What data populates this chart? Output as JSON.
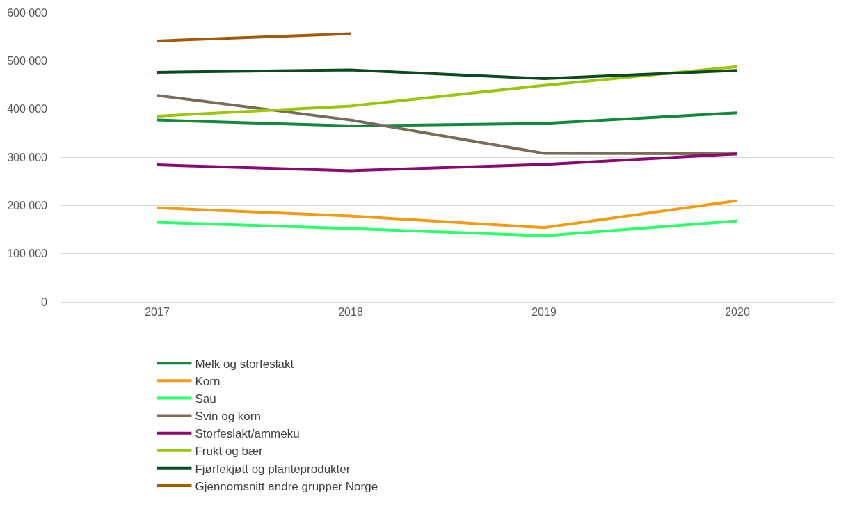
{
  "chart_data": {
    "type": "line",
    "categories": [
      "2017",
      "2018",
      "2019",
      "2020"
    ],
    "series": [
      {
        "name": "Melk og storfeslakt",
        "color": "#13883a",
        "values": [
          377000,
          365000,
          370000,
          392000
        ]
      },
      {
        "name": "Korn",
        "color": "#f39c12",
        "values": [
          195000,
          178000,
          154000,
          210000
        ]
      },
      {
        "name": "Sau",
        "color": "#2bff6a",
        "values": [
          165000,
          152000,
          137000,
          168000
        ]
      },
      {
        "name": "Svin og korn",
        "color": "#7a6a58",
        "values": [
          428000,
          377000,
          308000,
          307000
        ]
      },
      {
        "name": "Storfeslakt/ammeku",
        "color": "#8b0a6e",
        "values": [
          284000,
          272000,
          285000,
          307000
        ]
      },
      {
        "name": "Frukt og bær",
        "color": "#9cc40a",
        "values": [
          385000,
          406000,
          449000,
          488000
        ]
      },
      {
        "name": "Fjørfekjøtt og planteprodukter",
        "color": "#0b4a1e",
        "values": [
          476000,
          481000,
          463000,
          480000
        ]
      },
      {
        "name": "Gjennomsnitt andre grupper Norge",
        "color": "#a05a0a",
        "values": [
          541000,
          556000,
          null,
          null
        ]
      }
    ],
    "ylim": [
      0,
      600000
    ],
    "yticks": [
      {
        "value": 0,
        "label": "0"
      },
      {
        "value": 100000,
        "label": "100 000"
      },
      {
        "value": 200000,
        "label": "200 000"
      },
      {
        "value": 300000,
        "label": "300 000"
      },
      {
        "value": 400000,
        "label": "400 000"
      },
      {
        "value": 500000,
        "label": "500 000"
      },
      {
        "value": 600000,
        "label": "600 000"
      }
    ],
    "grid": "y",
    "legend": "bottom",
    "marker": "none",
    "line_style": "solid"
  }
}
